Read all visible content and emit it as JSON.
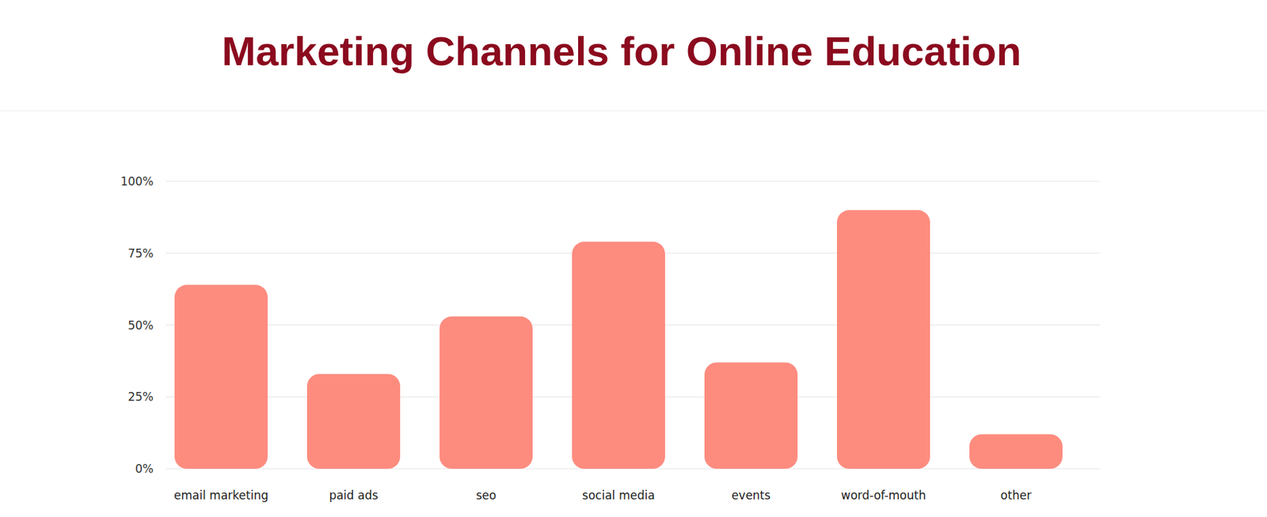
{
  "chart_data": {
    "type": "bar",
    "title": "Marketing Channels for Online Education",
    "categories": [
      "email marketing",
      "paid ads",
      "seo",
      "social media",
      "events",
      "word-of-mouth",
      "other"
    ],
    "values": [
      64,
      33,
      53,
      79,
      37,
      90,
      12
    ],
    "color": "#fd8c7f",
    "ylim": [
      0,
      100
    ],
    "yticks": [
      {
        "value": 0,
        "label": "0%"
      },
      {
        "value": 25,
        "label": "25%"
      },
      {
        "value": 50,
        "label": "50%"
      },
      {
        "value": 75,
        "label": "75%"
      },
      {
        "value": 100,
        "label": "100%"
      }
    ],
    "grid": true
  }
}
